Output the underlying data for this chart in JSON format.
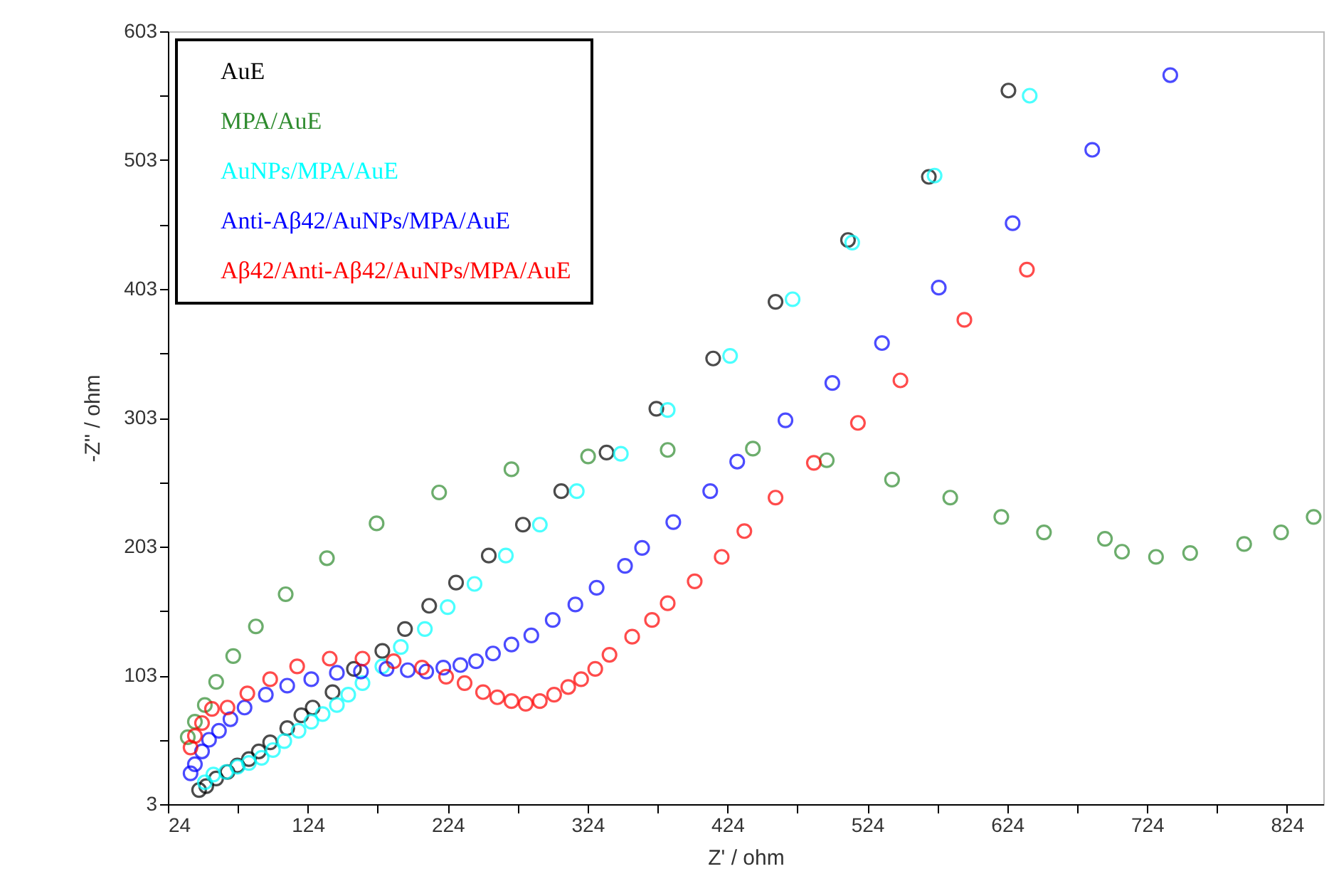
{
  "chart_data": {
    "type": "scatter",
    "xlabel": "Z' / ohm",
    "ylabel": "-Z'' / ohm",
    "marker": "circle",
    "legend": "top left",
    "grid": false,
    "xlim": [
      24,
      850
    ],
    "ylim": [
      3,
      603
    ],
    "xticks": [
      24,
      {
        "value": 74,
        "label": null
      },
      124,
      {
        "value": 174,
        "label": null
      },
      224,
      {
        "value": 274,
        "label": null
      },
      324,
      {
        "value": 374,
        "label": null
      },
      424,
      {
        "value": 474,
        "label": null
      },
      524,
      {
        "value": 574,
        "label": null
      },
      624,
      {
        "value": 674,
        "label": null
      },
      724,
      {
        "value": 774,
        "label": null
      },
      824
    ],
    "yticks": [
      3,
      {
        "value": 53,
        "label": null
      },
      103,
      {
        "value": 153,
        "label": null
      },
      203,
      {
        "value": 253,
        "label": null
      },
      303,
      {
        "value": 353,
        "label": null
      },
      403,
      {
        "value": 453,
        "label": null
      },
      503,
      {
        "value": 553,
        "label": null
      },
      603
    ],
    "series": [
      {
        "name": "AuE",
        "color": "#000000",
        "x": [
          46.3,
          51.4,
          58.5,
          66.6,
          73.7,
          81.9,
          89.0,
          97.1,
          109.3,
          119.4,
          127.5,
          141.7,
          157.0,
          177.3,
          193.5,
          210.8,
          230.0,
          253.4,
          277.8,
          305.2,
          337.6,
          373.2,
          413.8,
          458.4,
          510.2,
          568.0,
          624.9
        ],
        "values": [
          14,
          17,
          23,
          28,
          33,
          38,
          44,
          51,
          62,
          72,
          78,
          90,
          108,
          122,
          139,
          157,
          175,
          196,
          220,
          246,
          276,
          310,
          349,
          393,
          441,
          490,
          557
        ]
      },
      {
        "name": "MPA/AuE",
        "color": "#2e8b2e",
        "x": [
          38.2,
          43.3,
          50.4,
          58.5,
          70.7,
          86.9,
          108.2,
          137.7,
          173.2,
          217.9,
          269.6,
          324.4,
          381.3,
          442.2,
          495.0,
          541.7,
          583.3,
          619.8,
          650.3,
          693.9,
          706.1,
          730.4,
          754.8,
          793.4,
          819.8,
          843.1
        ],
        "values": [
          55,
          67,
          80,
          98,
          118,
          141,
          166,
          194,
          221,
          245,
          263,
          273,
          278,
          279,
          270,
          255,
          241,
          226,
          214,
          209,
          199,
          195,
          198,
          205,
          214,
          226
        ]
      },
      {
        "name": "AuNPs/MPA/AuE",
        "color": "#00ffff",
        "x": [
          50.4,
          56.5,
          65.6,
          73.7,
          81.9,
          91.0,
          99.1,
          107.2,
          117.4,
          126.5,
          134.6,
          144.8,
          152.9,
          163.1,
          177.3,
          190.5,
          207.7,
          224.0,
          243.2,
          265.6,
          289.9,
          316.3,
          347.8,
          381.3,
          425.9,
          470.6,
          513.2,
          572.1,
          640.1
        ],
        "values": [
          20,
          26,
          28,
          32,
          35,
          39,
          45,
          52,
          60,
          67,
          73,
          80,
          88,
          97,
          110,
          125,
          139,
          156,
          174,
          196,
          220,
          246,
          275,
          309,
          351,
          395,
          439,
          491,
          553
        ]
      },
      {
        "name": "Anti-Aβ42/AuNPs/MPA/AuE",
        "color": "#0000ff",
        "x": [
          40.2,
          43.3,
          48.4,
          53.4,
          60.5,
          68.7,
          78.8,
          94.0,
          109.3,
          126.5,
          144.8,
          162.0,
          180.3,
          195.5,
          208.7,
          220.9,
          233.1,
          244.3,
          256.4,
          269.6,
          283.8,
          299.1,
          315.3,
          330.5,
          350.8,
          363.0,
          385.3,
          411.7,
          431.0,
          465.5,
          499.0,
          534.5,
          575.1,
          627.9,
          684.8,
          740.6
        ],
        "values": [
          27,
          34,
          44,
          53,
          60,
          69,
          78,
          88,
          95,
          100,
          105,
          106,
          108,
          107,
          106,
          109,
          111,
          114,
          120,
          127,
          134,
          146,
          158,
          171,
          188,
          202,
          222,
          246,
          269,
          301,
          330,
          361,
          404,
          454,
          511,
          569
        ]
      },
      {
        "name": "Aβ42/Anti-Aβ42/AuNPs/MPA/AuE",
        "color": "#ff0000",
        "x": [
          40.2,
          43.3,
          48.4,
          55.5,
          66.6,
          80.8,
          97.1,
          116.4,
          139.7,
          163.1,
          185.4,
          205.7,
          222.9,
          236.1,
          249.3,
          259.5,
          269.6,
          279.8,
          289.9,
          300.1,
          310.2,
          319.4,
          329.5,
          339.7,
          355.9,
          370.1,
          381.3,
          400.6,
          419.9,
          436.1,
          458.4,
          485.8,
          517.3,
          547.7,
          593.4,
          638.1
        ],
        "values": [
          47,
          56,
          66,
          77,
          78,
          89,
          100,
          110,
          116,
          116,
          114,
          109,
          102,
          97,
          90,
          86,
          83,
          81,
          83,
          88,
          94,
          100,
          108,
          119,
          133,
          146,
          159,
          176,
          195,
          215,
          241,
          268,
          299,
          332,
          379,
          418
        ]
      }
    ]
  }
}
